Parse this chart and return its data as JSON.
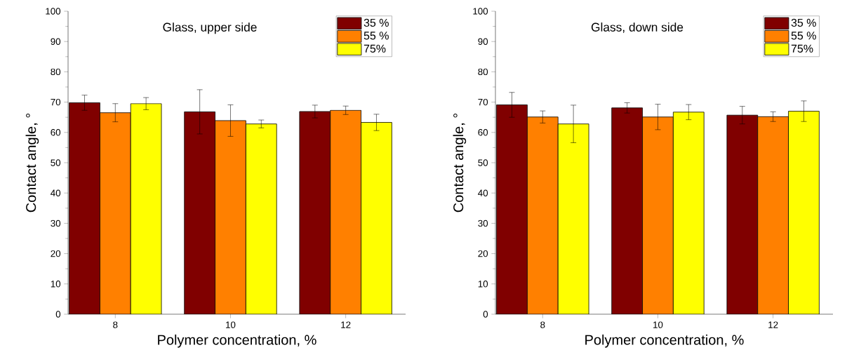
{
  "chart_data": [
    {
      "type": "bar",
      "title": "Glass, upper side",
      "xlabel": "Polymer concentration, %",
      "ylabel": "Contact angle, °",
      "categories": [
        "8",
        "10",
        "12"
      ],
      "series": [
        {
          "name": "35 %",
          "color": "#800000",
          "values": [
            69.8,
            66.8,
            66.9
          ],
          "errors": [
            2.5,
            7.3,
            2.1
          ]
        },
        {
          "name": "55 %",
          "color": "#ff8000",
          "values": [
            66.5,
            63.9,
            67.3
          ],
          "errors": [
            3.0,
            5.2,
            1.4
          ]
        },
        {
          "name": "75%",
          "color": "#ffff00",
          "values": [
            69.5,
            62.8,
            63.3
          ],
          "errors": [
            2.0,
            1.3,
            2.7
          ]
        }
      ],
      "ylim": [
        0,
        100
      ],
      "yticks": [
        0,
        10,
        20,
        30,
        40,
        50,
        60,
        70,
        80,
        90,
        100
      ],
      "legend": "top right",
      "grid": false
    },
    {
      "type": "bar",
      "title": "Glass, down side",
      "xlabel": "Polymer concentration, %",
      "ylabel": "Contact angle, °",
      "categories": [
        "8",
        "10",
        "12"
      ],
      "series": [
        {
          "name": "35 %",
          "color": "#800000",
          "values": [
            69.1,
            68.1,
            65.7
          ],
          "errors": [
            4.1,
            1.7,
            2.9
          ]
        },
        {
          "name": "55 %",
          "color": "#ff8000",
          "values": [
            65.1,
            65.1,
            65.2
          ],
          "errors": [
            2.0,
            4.2,
            1.6
          ]
        },
        {
          "name": "75%",
          "color": "#ffff00",
          "values": [
            62.8,
            66.7,
            67.0
          ],
          "errors": [
            6.2,
            2.5,
            3.4
          ]
        }
      ],
      "ylim": [
        0,
        100
      ],
      "yticks": [
        0,
        10,
        20,
        30,
        40,
        50,
        60,
        70,
        80,
        90,
        100
      ],
      "legend": "top right",
      "grid": false
    }
  ]
}
